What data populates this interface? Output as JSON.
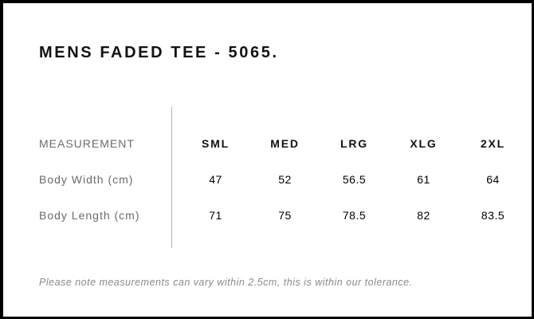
{
  "chart_data": {
    "type": "table",
    "title": "MENS FADED TEE - 5065.",
    "columns": [
      "MEASUREMENT",
      "SML",
      "MED",
      "LRG",
      "XLG",
      "2XL"
    ],
    "rows": [
      [
        "Body Width (cm)",
        "47",
        "52",
        "56.5",
        "61",
        "64"
      ],
      [
        "Body Length (cm)",
        "71",
        "75",
        "78.5",
        "82",
        "83.5"
      ]
    ],
    "note": "Please note measurements can vary within 2.5cm, this is within our tolerance.",
    "layout_hints": {
      "first_column_align": "left",
      "size_columns_align": "center",
      "divider_between_labels_and_sizes": true,
      "grid": "off"
    }
  },
  "colors": {
    "border": "#000000",
    "background": "#ffffff",
    "text_primary": "#121212",
    "text_values": "#000000",
    "text_muted_labels": "#6b6b6b",
    "text_note": "#8a8a8a",
    "divider": "#b3b3b3"
  }
}
